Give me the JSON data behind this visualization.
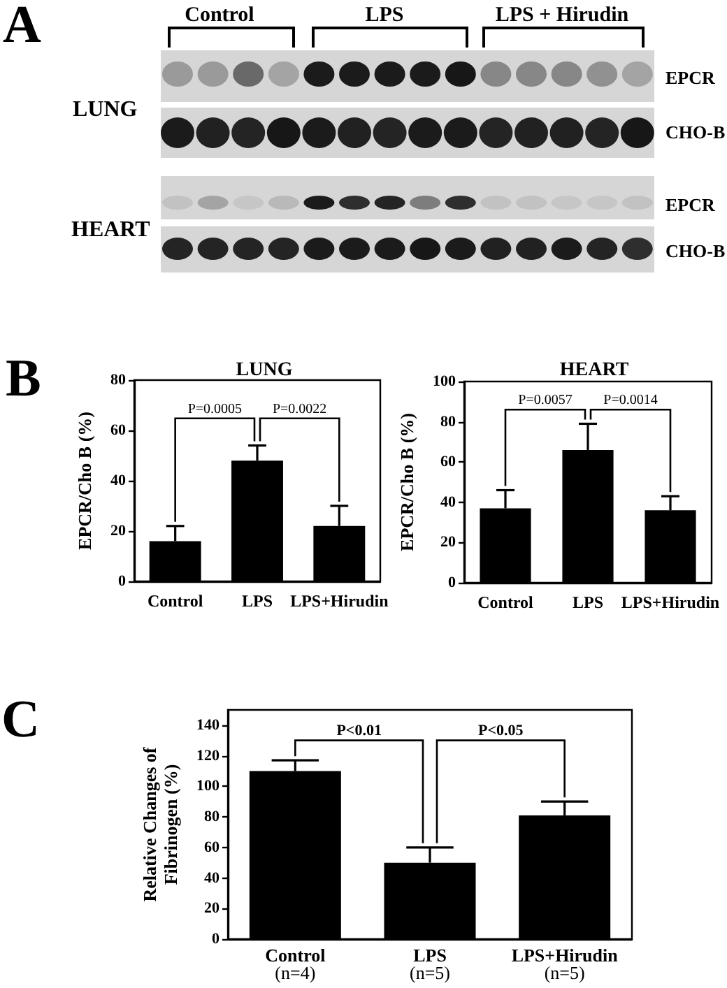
{
  "chart_data": [
    {
      "type": "other",
      "annotations": [
        "A",
        "Control",
        "LPS",
        "LPS + Hirudin",
        "LUNG",
        "EPCR",
        "CHO-B",
        "HEART",
        "EPCR",
        "CHO-B"
      ]
    },
    {
      "type": "bar",
      "title": "LUNG",
      "ylabel": "EPCR/Cho B (%)",
      "categories": [
        "Control",
        "LPS",
        "LPS+Hirudin"
      ],
      "values": [
        16,
        48,
        22
      ],
      "errors": [
        [
          16,
          22
        ],
        [
          48,
          54
        ],
        [
          22,
          30
        ]
      ],
      "color": "#000000",
      "ylim": [
        0,
        80
      ],
      "yticks": [
        0,
        20,
        40,
        60,
        80
      ],
      "annotations": [
        "B",
        "P=0.0005",
        "P=0.0022"
      ]
    },
    {
      "type": "bar",
      "title": "HEART",
      "ylabel": "EPCR/Cho B (%)",
      "categories": [
        "Control",
        "LPS",
        "LPS+Hirudin"
      ],
      "values": [
        37,
        66,
        36
      ],
      "errors": [
        [
          37,
          46
        ],
        [
          66,
          79
        ],
        [
          36,
          43
        ]
      ],
      "color": "#000000",
      "ylim": [
        0,
        100
      ],
      "yticks": [
        0,
        20,
        40,
        60,
        80,
        100
      ],
      "annotations": [
        "P=0.0057",
        "P=0.0014"
      ]
    },
    {
      "type": "bar",
      "ylabel": "Relative Changes of\nFibrinogen (%)",
      "categories": [
        "Control\n(n=4)",
        "LPS\n(n=5)",
        "LPS+Hirudin\n(n=5)"
      ],
      "values": [
        110,
        50,
        81
      ],
      "errors": [
        [
          110,
          117
        ],
        [
          50,
          60
        ],
        [
          81,
          90
        ]
      ],
      "color": "#000000",
      "ylim": [
        0,
        150
      ],
      "yticks": [
        0,
        20,
        40,
        60,
        80,
        100,
        120,
        140
      ],
      "annotations": [
        "C",
        "P<0.01",
        "P<0.05"
      ]
    }
  ]
}
